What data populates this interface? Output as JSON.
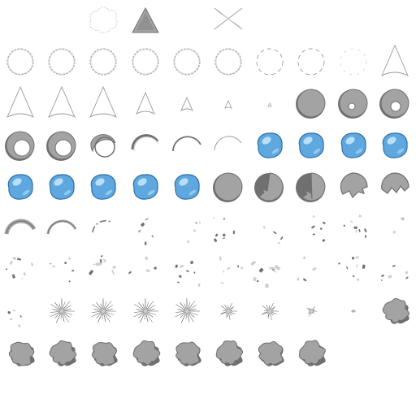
{
  "sheet": {
    "title": "",
    "columns": 10,
    "rows": 9,
    "colors": {
      "outline": "#9a9a9a",
      "grey_fill": "#a3a3a3",
      "grey_dark": "#707070",
      "grey_light": "#cfcfcf",
      "blue_fill": "#5ea8df",
      "blue_light": "#b9def7",
      "blue_dark": "#2f6fa8"
    },
    "frames": [
      {
        "row": 0,
        "col": 2,
        "kind": "puff-outline",
        "name": "puff-outline-frame"
      },
      {
        "row": 0,
        "col": 3,
        "kind": "triangle-grey",
        "name": "triangle-frame"
      },
      {
        "row": 0,
        "col": 5,
        "kind": "cross-lines",
        "name": "cross-frame"
      },
      {
        "row": 1,
        "col": 0,
        "kind": "ring-dashed",
        "name": "ring-frame"
      },
      {
        "row": 1,
        "col": 1,
        "kind": "ring-dashed",
        "name": "ring-frame"
      },
      {
        "row": 1,
        "col": 2,
        "kind": "ring-dashed",
        "name": "ring-frame"
      },
      {
        "row": 1,
        "col": 3,
        "kind": "ring-dashed",
        "name": "ring-frame"
      },
      {
        "row": 1,
        "col": 4,
        "kind": "ring-dashed",
        "name": "ring-frame"
      },
      {
        "row": 1,
        "col": 5,
        "kind": "ring-dashed",
        "name": "ring-frame"
      },
      {
        "row": 1,
        "col": 6,
        "kind": "ring-broken",
        "name": "ring-frame"
      },
      {
        "row": 1,
        "col": 7,
        "kind": "ring-broken",
        "name": "ring-frame"
      },
      {
        "row": 1,
        "col": 8,
        "kind": "ring-faint",
        "name": "ring-frame"
      },
      {
        "row": 1,
        "col": 9,
        "kind": "cone-outline",
        "name": "cone-frame"
      },
      {
        "row": 2,
        "col": 0,
        "kind": "cone-outline",
        "name": "cone-frame"
      },
      {
        "row": 2,
        "col": 1,
        "kind": "cone-outline",
        "name": "cone-frame"
      },
      {
        "row": 2,
        "col": 2,
        "kind": "cone-outline",
        "name": "cone-frame"
      },
      {
        "row": 2,
        "col": 3,
        "kind": "cone-small",
        "name": "cone-frame"
      },
      {
        "row": 2,
        "col": 4,
        "kind": "cone-smaller",
        "name": "cone-frame"
      },
      {
        "row": 2,
        "col": 5,
        "kind": "cone-tiny",
        "name": "cone-frame"
      },
      {
        "row": 2,
        "col": 6,
        "kind": "cone-dot",
        "name": "cone-frame"
      },
      {
        "row": 2,
        "col": 7,
        "kind": "disc-grey",
        "name": "disc-frame"
      },
      {
        "row": 2,
        "col": 8,
        "kind": "disc-hole-small",
        "name": "disc-frame"
      },
      {
        "row": 2,
        "col": 9,
        "kind": "disc-hole-medium",
        "name": "disc-frame"
      },
      {
        "row": 3,
        "col": 0,
        "kind": "disc-hole-large",
        "name": "disc-frame"
      },
      {
        "row": 3,
        "col": 1,
        "kind": "disc-hole-large",
        "name": "disc-frame"
      },
      {
        "row": 3,
        "col": 2,
        "kind": "crescent-thick",
        "name": "crescent-frame"
      },
      {
        "row": 3,
        "col": 3,
        "kind": "crescent-medium",
        "name": "crescent-frame"
      },
      {
        "row": 3,
        "col": 4,
        "kind": "crescent-thin",
        "name": "crescent-frame"
      },
      {
        "row": 3,
        "col": 5,
        "kind": "crescent-hair",
        "name": "crescent-frame"
      },
      {
        "row": 3,
        "col": 6,
        "kind": "bubble-blue",
        "name": "bubble-frame"
      },
      {
        "row": 3,
        "col": 7,
        "kind": "bubble-blue",
        "name": "bubble-frame"
      },
      {
        "row": 3,
        "col": 8,
        "kind": "bubble-blue",
        "name": "bubble-frame"
      },
      {
        "row": 3,
        "col": 9,
        "kind": "bubble-blue",
        "name": "bubble-frame"
      },
      {
        "row": 4,
        "col": 0,
        "kind": "bubble-blue",
        "name": "bubble-frame"
      },
      {
        "row": 4,
        "col": 1,
        "kind": "bubble-blue",
        "name": "bubble-frame"
      },
      {
        "row": 4,
        "col": 2,
        "kind": "bubble-blue",
        "name": "bubble-frame"
      },
      {
        "row": 4,
        "col": 3,
        "kind": "bubble-blue",
        "name": "bubble-frame"
      },
      {
        "row": 4,
        "col": 4,
        "kind": "bubble-blue",
        "name": "bubble-frame"
      },
      {
        "row": 4,
        "col": 5,
        "kind": "disc-grey",
        "name": "disc-frame"
      },
      {
        "row": 4,
        "col": 6,
        "kind": "disc-chip-1",
        "name": "disc-frame"
      },
      {
        "row": 4,
        "col": 7,
        "kind": "disc-chip-2",
        "name": "disc-frame"
      },
      {
        "row": 4,
        "col": 8,
        "kind": "disc-chip-3",
        "name": "disc-frame"
      },
      {
        "row": 4,
        "col": 9,
        "kind": "disc-chip-4",
        "name": "disc-frame"
      },
      {
        "row": 5,
        "col": 0,
        "kind": "arc-thick",
        "name": "arc-frame"
      },
      {
        "row": 5,
        "col": 1,
        "kind": "arc-medium",
        "name": "arc-frame"
      },
      {
        "row": 5,
        "col": 2,
        "kind": "arc-thin",
        "name": "arc-frame"
      },
      {
        "row": 5,
        "col": 3,
        "kind": "debris-a",
        "name": "debris-frame"
      },
      {
        "row": 5,
        "col": 4,
        "kind": "debris-b",
        "name": "debris-frame"
      },
      {
        "row": 5,
        "col": 5,
        "kind": "debris-c",
        "name": "debris-frame"
      },
      {
        "row": 5,
        "col": 6,
        "kind": "debris-b",
        "name": "debris-frame"
      },
      {
        "row": 5,
        "col": 7,
        "kind": "debris-a",
        "name": "debris-frame"
      },
      {
        "row": 5,
        "col": 8,
        "kind": "debris-c",
        "name": "debris-frame"
      },
      {
        "row": 5,
        "col": 9,
        "kind": "debris-b",
        "name": "debris-frame"
      },
      {
        "row": 6,
        "col": 0,
        "kind": "debris-c",
        "name": "debris-frame"
      },
      {
        "row": 6,
        "col": 1,
        "kind": "debris-a",
        "name": "debris-frame"
      },
      {
        "row": 6,
        "col": 2,
        "kind": "debris-heavy",
        "name": "debris-frame"
      },
      {
        "row": 6,
        "col": 3,
        "kind": "debris-b",
        "name": "debris-frame"
      },
      {
        "row": 6,
        "col": 4,
        "kind": "debris-c",
        "name": "debris-frame"
      },
      {
        "row": 6,
        "col": 5,
        "kind": "debris-a",
        "name": "debris-frame"
      },
      {
        "row": 6,
        "col": 6,
        "kind": "debris-heavy",
        "name": "debris-frame"
      },
      {
        "row": 6,
        "col": 7,
        "kind": "debris-b",
        "name": "debris-frame"
      },
      {
        "row": 6,
        "col": 8,
        "kind": "debris-c",
        "name": "debris-frame"
      },
      {
        "row": 6,
        "col": 9,
        "kind": "debris-a",
        "name": "debris-frame"
      },
      {
        "row": 7,
        "col": 0,
        "kind": "debris-a",
        "name": "debris-frame"
      },
      {
        "row": 7,
        "col": 1,
        "kind": "burst-rays",
        "name": "burst-frame"
      },
      {
        "row": 7,
        "col": 2,
        "kind": "burst-rays",
        "name": "burst-frame"
      },
      {
        "row": 7,
        "col": 3,
        "kind": "burst-rays",
        "name": "burst-frame"
      },
      {
        "row": 7,
        "col": 4,
        "kind": "burst-rays",
        "name": "burst-frame"
      },
      {
        "row": 7,
        "col": 5,
        "kind": "burst-small",
        "name": "burst-frame"
      },
      {
        "row": 7,
        "col": 6,
        "kind": "burst-small",
        "name": "burst-frame"
      },
      {
        "row": 7,
        "col": 7,
        "kind": "burst-tiny",
        "name": "burst-frame"
      },
      {
        "row": 7,
        "col": 8,
        "kind": "speck",
        "name": "speck-frame"
      },
      {
        "row": 7,
        "col": 9,
        "kind": "splat",
        "name": "splat-frame"
      },
      {
        "row": 8,
        "col": 0,
        "kind": "splat",
        "name": "splat-frame"
      },
      {
        "row": 8,
        "col": 1,
        "kind": "splat",
        "name": "splat-frame"
      },
      {
        "row": 8,
        "col": 2,
        "kind": "splat",
        "name": "splat-frame"
      },
      {
        "row": 8,
        "col": 3,
        "kind": "splat",
        "name": "splat-frame"
      },
      {
        "row": 8,
        "col": 4,
        "kind": "splat",
        "name": "splat-frame"
      },
      {
        "row": 8,
        "col": 5,
        "kind": "splat",
        "name": "splat-frame"
      },
      {
        "row": 8,
        "col": 6,
        "kind": "splat",
        "name": "splat-frame"
      },
      {
        "row": 8,
        "col": 7,
        "kind": "splat",
        "name": "splat-frame"
      }
    ]
  }
}
